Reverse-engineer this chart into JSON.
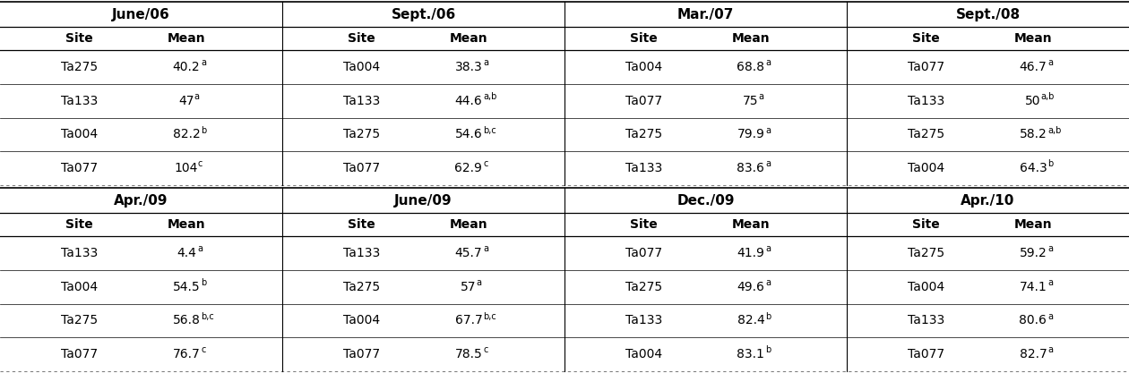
{
  "sections": [
    {
      "period": "June/06",
      "rows": [
        {
          "site": "Ta275",
          "mean": "40.2",
          "sup": "a"
        },
        {
          "site": "Ta133",
          "mean": "47",
          "sup": "a"
        },
        {
          "site": "Ta004",
          "mean": "82.2",
          "sup": "b"
        },
        {
          "site": "Ta077",
          "mean": "104",
          "sup": "c"
        }
      ]
    },
    {
      "period": "Sept./06",
      "rows": [
        {
          "site": "Ta004",
          "mean": "38.3",
          "sup": "a"
        },
        {
          "site": "Ta133",
          "mean": "44.6",
          "sup": "a,b"
        },
        {
          "site": "Ta275",
          "mean": "54.6",
          "sup": "b,c"
        },
        {
          "site": "Ta077",
          "mean": "62.9",
          "sup": "c"
        }
      ]
    },
    {
      "period": "Mar./07",
      "rows": [
        {
          "site": "Ta004",
          "mean": "68.8",
          "sup": "a"
        },
        {
          "site": "Ta077",
          "mean": "75",
          "sup": "a"
        },
        {
          "site": "Ta275",
          "mean": "79.9",
          "sup": "a"
        },
        {
          "site": "Ta133",
          "mean": "83.6",
          "sup": "a"
        }
      ]
    },
    {
      "period": "Sept./08",
      "rows": [
        {
          "site": "Ta077",
          "mean": "46.7",
          "sup": "a"
        },
        {
          "site": "Ta133",
          "mean": "50",
          "sup": "a,b"
        },
        {
          "site": "Ta275",
          "mean": "58.2",
          "sup": "a,b"
        },
        {
          "site": "Ta004",
          "mean": "64.3",
          "sup": "b"
        }
      ]
    },
    {
      "period": "Apr./09",
      "rows": [
        {
          "site": "Ta133",
          "mean": "4.4",
          "sup": "a"
        },
        {
          "site": "Ta004",
          "mean": "54.5",
          "sup": "b"
        },
        {
          "site": "Ta275",
          "mean": "56.8",
          "sup": "b,c"
        },
        {
          "site": "Ta077",
          "mean": "76.7",
          "sup": "c"
        }
      ]
    },
    {
      "period": "June/09",
      "rows": [
        {
          "site": "Ta133",
          "mean": "45.7",
          "sup": "a"
        },
        {
          "site": "Ta275",
          "mean": "57",
          "sup": "a"
        },
        {
          "site": "Ta004",
          "mean": "67.7",
          "sup": "b,c"
        },
        {
          "site": "Ta077",
          "mean": "78.5",
          "sup": "c"
        }
      ]
    },
    {
      "period": "Dec./09",
      "rows": [
        {
          "site": "Ta077",
          "mean": "41.9",
          "sup": "a"
        },
        {
          "site": "Ta275",
          "mean": "49.6",
          "sup": "a"
        },
        {
          "site": "Ta133",
          "mean": "82.4",
          "sup": "b"
        },
        {
          "site": "Ta004",
          "mean": "83.1",
          "sup": "b"
        }
      ]
    },
    {
      "period": "Apr./10",
      "rows": [
        {
          "site": "Ta275",
          "mean": "59.2",
          "sup": "a"
        },
        {
          "site": "Ta004",
          "mean": "74.1",
          "sup": "a"
        },
        {
          "site": "Ta133",
          "mean": "80.6",
          "sup": "a"
        },
        {
          "site": "Ta077",
          "mean": "82.7",
          "sup": "a"
        }
      ]
    }
  ],
  "bg_color": "#ffffff",
  "font_size_period": 11,
  "font_size_header": 10,
  "font_size_data": 10,
  "font_size_sup": 7
}
